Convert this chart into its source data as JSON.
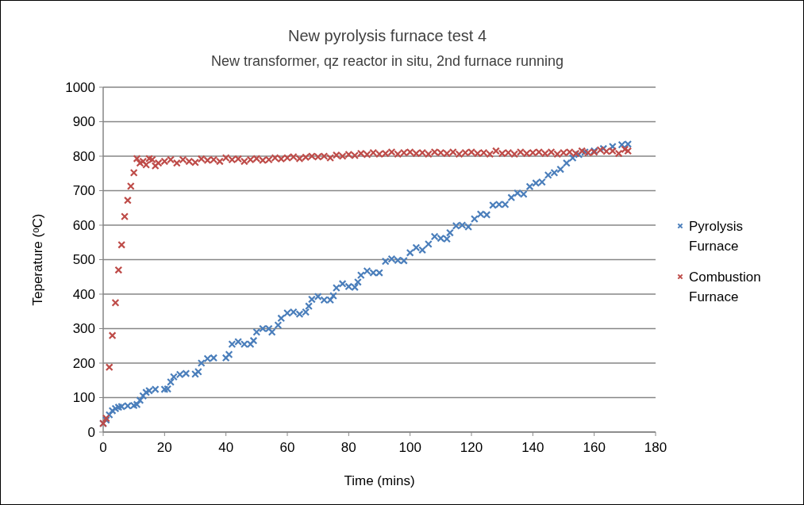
{
  "chart_data": {
    "type": "scatter",
    "title": "New pyrolysis furnace test 4",
    "subtitle": "New transformer, qz reactor in situ, 2nd furnace running",
    "xlabel": "Time (mins)",
    "ylabel": "Teperature (ᵒC)",
    "xlim": [
      0,
      180
    ],
    "xticks": [
      0,
      20,
      40,
      60,
      80,
      100,
      120,
      140,
      160,
      180
    ],
    "ylim": [
      0,
      1000
    ],
    "yticks": [
      0,
      100,
      200,
      300,
      400,
      500,
      600,
      700,
      800,
      900,
      1000
    ],
    "grid": "y",
    "legend": "right",
    "marker": "cross",
    "series": [
      {
        "name": "Pyrolysis Furnace",
        "color": "#4a7ebb",
        "x": [
          0,
          1,
          2,
          3,
          4,
          5,
          6,
          8,
          10,
          11,
          12,
          13,
          14,
          15,
          17,
          20,
          21,
          22,
          23,
          25,
          27,
          30,
          31,
          32,
          34,
          36,
          40,
          41,
          42,
          44,
          46,
          48,
          49,
          50,
          52,
          54,
          55,
          57,
          58,
          60,
          62,
          64,
          66,
          67,
          68,
          70,
          72,
          74,
          75,
          76,
          78,
          80,
          82,
          83,
          84,
          86,
          88,
          90,
          92,
          94,
          96,
          98,
          100,
          102,
          104,
          106,
          108,
          110,
          112,
          113,
          115,
          117,
          119,
          121,
          123,
          125,
          127,
          129,
          131,
          133,
          135,
          137,
          139,
          141,
          143,
          145,
          147,
          149,
          151,
          153,
          155,
          157,
          160,
          163,
          166,
          169,
          171
        ],
        "values": [
          25,
          35,
          50,
          62,
          68,
          72,
          74,
          76,
          77,
          80,
          92,
          105,
          115,
          120,
          124,
          124,
          125,
          145,
          160,
          167,
          170,
          168,
          175,
          200,
          213,
          215,
          215,
          225,
          255,
          262,
          255,
          255,
          265,
          290,
          300,
          300,
          290,
          310,
          330,
          345,
          348,
          342,
          348,
          365,
          385,
          393,
          383,
          383,
          395,
          418,
          430,
          422,
          420,
          435,
          455,
          467,
          462,
          462,
          495,
          502,
          498,
          497,
          520,
          535,
          528,
          545,
          567,
          562,
          560,
          578,
          598,
          600,
          595,
          618,
          632,
          630,
          658,
          660,
          660,
          680,
          693,
          690,
          712,
          722,
          725,
          745,
          752,
          762,
          780,
          795,
          805,
          812,
          815,
          822,
          828,
          833,
          835
        ]
      },
      {
        "name": "Combustion Furnace",
        "color": "#be4b48",
        "x": [
          0,
          1,
          2,
          3,
          4,
          5,
          6,
          7,
          8,
          9,
          10,
          11,
          12,
          13,
          14,
          15,
          16,
          17,
          18,
          20,
          22,
          24,
          26,
          28,
          30,
          32,
          34,
          36,
          38,
          40,
          42,
          44,
          46,
          48,
          50,
          52,
          54,
          56,
          58,
          60,
          62,
          64,
          66,
          68,
          70,
          72,
          74,
          76,
          78,
          80,
          82,
          84,
          86,
          88,
          90,
          92,
          94,
          96,
          98,
          100,
          102,
          104,
          106,
          108,
          110,
          112,
          114,
          116,
          118,
          120,
          122,
          124,
          126,
          128,
          130,
          132,
          134,
          136,
          138,
          140,
          142,
          144,
          146,
          148,
          150,
          152,
          154,
          156,
          158,
          160,
          162,
          164,
          166,
          168,
          170,
          171
        ],
        "values": [
          25,
          40,
          188,
          280,
          375,
          470,
          543,
          625,
          672,
          713,
          752,
          793,
          780,
          785,
          775,
          793,
          790,
          772,
          780,
          785,
          790,
          780,
          790,
          785,
          782,
          792,
          788,
          790,
          785,
          795,
          790,
          792,
          785,
          790,
          793,
          788,
          790,
          795,
          792,
          795,
          798,
          793,
          797,
          800,
          798,
          800,
          795,
          803,
          800,
          805,
          802,
          808,
          805,
          810,
          806,
          808,
          812,
          806,
          810,
          812,
          808,
          810,
          806,
          812,
          810,
          808,
          812,
          806,
          810,
          812,
          808,
          810,
          806,
          815,
          808,
          810,
          806,
          812,
          808,
          810,
          812,
          808,
          812,
          806,
          810,
          812,
          808,
          815,
          810,
          812,
          818,
          814,
          815,
          808,
          820,
          815
        ]
      }
    ]
  }
}
